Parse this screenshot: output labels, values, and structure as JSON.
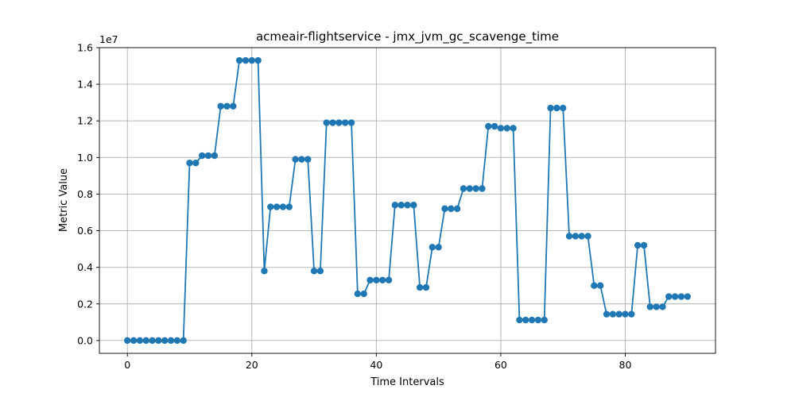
{
  "chart_data": {
    "type": "line",
    "title": "acmeair-flightservice - jmx_jvm_gc_scavenge_time",
    "xlabel": "Time Intervals",
    "ylabel": "Metric Value",
    "y_scale_label": "1e7",
    "xlim": [
      -4.5,
      94.5
    ],
    "ylim": [
      -700000,
      16000000
    ],
    "x_ticks": [
      0,
      20,
      40,
      60,
      80
    ],
    "x_tick_labels": [
      "0",
      "20",
      "40",
      "60",
      "80"
    ],
    "y_ticks": [
      0,
      2000000,
      4000000,
      6000000,
      8000000,
      10000000,
      12000000,
      14000000,
      16000000
    ],
    "y_tick_labels": [
      "0.0",
      "0.2",
      "0.4",
      "0.6",
      "0.8",
      "1.0",
      "1.2",
      "1.4",
      "1.6"
    ],
    "grid": true,
    "colors": {
      "series": "#1f77b4"
    },
    "series": [
      {
        "values": [
          0,
          0,
          0,
          0,
          0,
          0,
          0,
          0,
          0,
          0,
          9700000,
          9700000,
          10100000,
          10100000,
          10100000,
          12800000,
          12800000,
          12800000,
          15300000,
          15300000,
          15300000,
          15300000,
          3800000,
          7300000,
          7300000,
          7300000,
          7300000,
          9900000,
          9900000,
          9900000,
          3800000,
          3800000,
          11900000,
          11900000,
          11900000,
          11900000,
          11900000,
          2550000,
          2550000,
          3300000,
          3300000,
          3300000,
          3300000,
          7400000,
          7400000,
          7400000,
          7400000,
          2900000,
          2900000,
          5100000,
          5100000,
          7200000,
          7200000,
          7200000,
          8300000,
          8300000,
          8300000,
          8300000,
          11700000,
          11700000,
          11600000,
          11600000,
          11600000,
          1120000,
          1120000,
          1120000,
          1120000,
          1120000,
          12700000,
          12700000,
          12700000,
          5700000,
          5700000,
          5700000,
          5700000,
          3000000,
          3000000,
          1440000,
          1440000,
          1440000,
          1440000,
          1440000,
          5200000,
          5200000,
          1840000,
          1840000,
          1840000,
          2400000,
          2400000,
          2400000,
          2400000
        ]
      }
    ]
  }
}
